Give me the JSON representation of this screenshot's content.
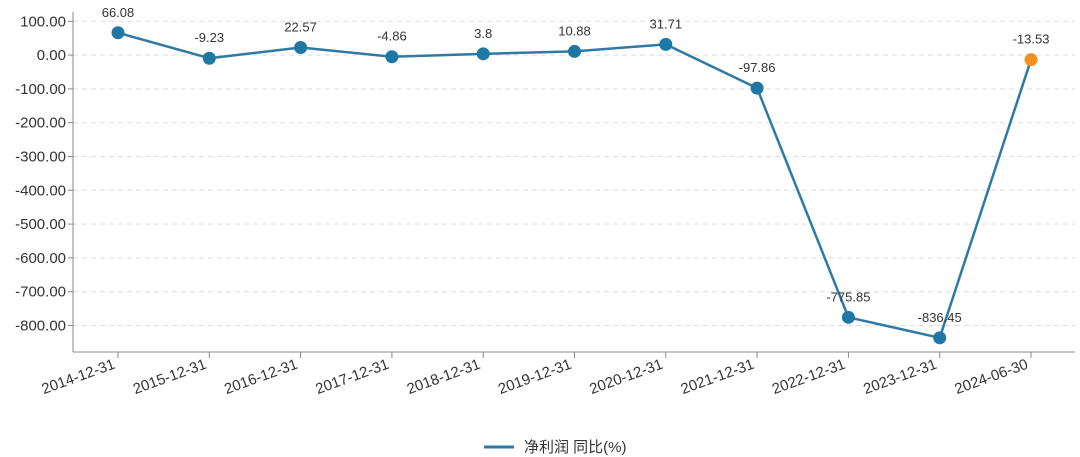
{
  "chart_data": {
    "type": "line",
    "categories": [
      "2014-12-31",
      "2015-12-31",
      "2016-12-31",
      "2017-12-31",
      "2018-12-31",
      "2019-12-31",
      "2020-12-31",
      "2021-12-31",
      "2022-12-31",
      "2023-12-31",
      "2024-06-30"
    ],
    "series": [
      {
        "name": "净利润 同比(%)",
        "values": [
          66.08,
          -9.23,
          22.57,
          -4.86,
          3.8,
          10.88,
          31.71,
          -97.86,
          -775.85,
          -836.45,
          -13.53
        ],
        "labels": [
          "66.08",
          "-9.23",
          "22.57",
          "-4.86",
          "3.8",
          "10.88",
          "31.71",
          "-97.86",
          "-775.85",
          "-836.45",
          "-13.53"
        ]
      }
    ],
    "y_ticks": [
      100,
      0,
      -100,
      -200,
      -300,
      -400,
      -500,
      -600,
      -700,
      -800
    ],
    "y_tick_labels": [
      "100.00",
      "0.00",
      "-100.00",
      "-200.00",
      "-300.00",
      "-400.00",
      "-500.00",
      "-600.00",
      "-700.00",
      "-800.00"
    ],
    "ylim": [
      -880,
      100
    ],
    "grid": true,
    "legend_position": "bottom-center",
    "colors": {
      "line": "#2e7aa5",
      "point": "#1f77a4",
      "highlight_point": "#f5901e",
      "grid": "#dddddd",
      "axis": "#888888"
    },
    "highlight_index": 10
  }
}
